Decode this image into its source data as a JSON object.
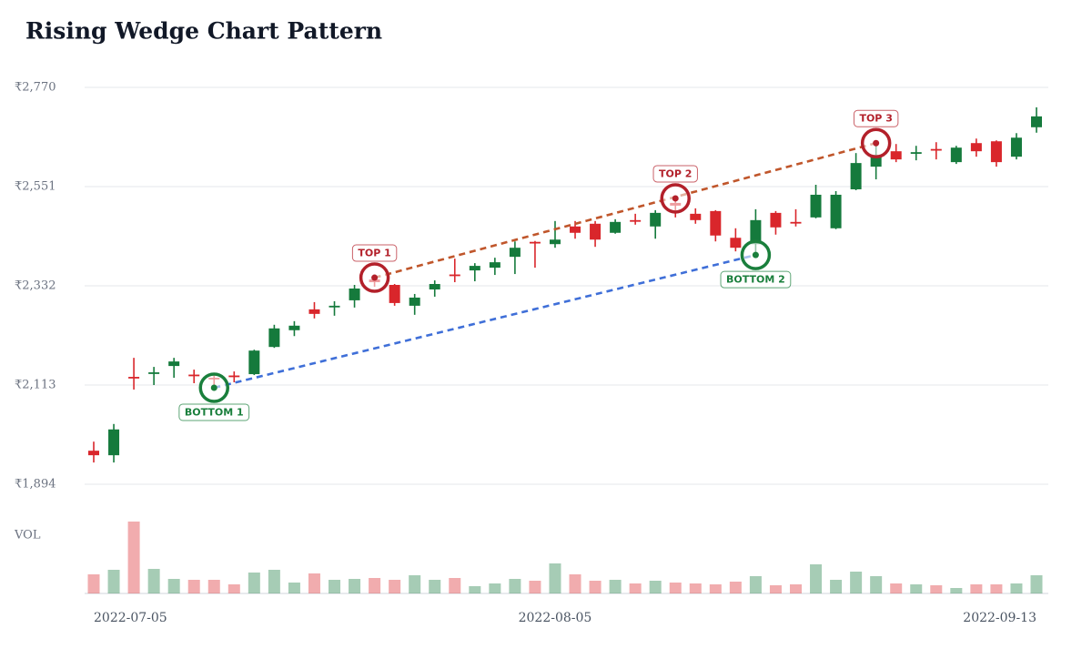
{
  "chart_data": {
    "type": "candlestick",
    "title": "Rising Wedge Chart Pattern",
    "categories": [
      "2022-07-05",
      null,
      null,
      null,
      null,
      null,
      null,
      null,
      null,
      null,
      null,
      null,
      null,
      null,
      null,
      null,
      null,
      null,
      null,
      null,
      null,
      null,
      null,
      "2022-08-05",
      null,
      null,
      null,
      null,
      null,
      null,
      null,
      null,
      null,
      null,
      null,
      null,
      null,
      null,
      null,
      null,
      null,
      null,
      null,
      null,
      null,
      null,
      null,
      "2022-09-13"
    ],
    "open": [
      1968,
      1958,
      2131,
      2139,
      2155,
      2136,
      2129,
      2134,
      2137,
      2197,
      2234,
      2280,
      2286,
      2300,
      2346,
      2334,
      2288,
      2324,
      2357,
      2366,
      2372,
      2396,
      2429,
      2424,
      2463,
      2469,
      2449,
      2477,
      2463,
      2515,
      2491,
      2497,
      2438,
      2424,
      2493,
      2473,
      2483,
      2459,
      2545,
      2595,
      2629,
      2625,
      2634,
      2605,
      2647,
      2651,
      2617,
      2682
    ],
    "high": [
      1988,
      2027,
      2173,
      2153,
      2173,
      2147,
      2137,
      2143,
      2191,
      2246,
      2254,
      2296,
      2298,
      2334,
      2350,
      2336,
      2314,
      2344,
      2392,
      2382,
      2394,
      2430,
      2431,
      2475,
      2475,
      2475,
      2479,
      2491,
      2499,
      2525,
      2503,
      2499,
      2459,
      2501,
      2497,
      2501,
      2555,
      2541,
      2625,
      2647,
      2645,
      2641,
      2649,
      2641,
      2657,
      2653,
      2669,
      2726
    ],
    "low": [
      1942,
      1942,
      2103,
      2113,
      2129,
      2117,
      2107,
      2119,
      2135,
      2195,
      2221,
      2260,
      2266,
      2284,
      2330,
      2288,
      2268,
      2308,
      2340,
      2342,
      2356,
      2358,
      2372,
      2416,
      2436,
      2418,
      2447,
      2467,
      2436,
      2483,
      2469,
      2430,
      2408,
      2400,
      2445,
      2463,
      2481,
      2457,
      2543,
      2567,
      2605,
      2609,
      2611,
      2601,
      2617,
      2595,
      2611,
      2670
    ],
    "close": [
      1958,
      2015,
      2130,
      2141,
      2165,
      2135,
      2127,
      2132,
      2189,
      2238,
      2244,
      2270,
      2288,
      2326,
      2340,
      2294,
      2306,
      2336,
      2355,
      2376,
      2384,
      2416,
      2427,
      2434,
      2449,
      2434,
      2473,
      2475,
      2493,
      2509,
      2477,
      2443,
      2416,
      2477,
      2461,
      2471,
      2533,
      2533,
      2603,
      2621,
      2611,
      2627,
      2632,
      2637,
      2629,
      2605,
      2659,
      2706
    ],
    "up_color": "#157a3c",
    "down_color": "#d9262b",
    "ylim": [
      1894,
      2770
    ],
    "yticks": [
      {
        "value": 1894,
        "label": "₹1,894"
      },
      {
        "value": 2113,
        "label": "₹2,113"
      },
      {
        "value": 2332,
        "label": "₹2,332"
      },
      {
        "value": 2551,
        "label": "₹2,551"
      },
      {
        "value": 2770,
        "label": "₹2,770"
      }
    ],
    "grid": true,
    "volume_label": "VOL",
    "volume": [
      21,
      26,
      79,
      27,
      16,
      15,
      15,
      10,
      23,
      26,
      12,
      22,
      15,
      16,
      17,
      15,
      20,
      15,
      17,
      8,
      11,
      16,
      14,
      33,
      21,
      14,
      15,
      11,
      14,
      12,
      11,
      10,
      13,
      19,
      9,
      10,
      32,
      15,
      24,
      19,
      11,
      10,
      9,
      6,
      10,
      10,
      11,
      20
    ],
    "volume_lim": [
      0,
      80
    ],
    "markers": [
      {
        "label": "TOP 1",
        "index": 14,
        "value": 2350,
        "kind": "top",
        "color": "#b3202a"
      },
      {
        "label": "TOP 2",
        "index": 29,
        "value": 2525,
        "kind": "top",
        "color": "#b3202a"
      },
      {
        "label": "TOP 3",
        "index": 39,
        "value": 2647,
        "kind": "top",
        "color": "#b3202a"
      },
      {
        "label": "BOTTOM 1",
        "index": 6,
        "value": 2107,
        "kind": "bottom",
        "color": "#1a7f3c"
      },
      {
        "label": "BOTTOM 2",
        "index": 33,
        "value": 2400,
        "kind": "bottom",
        "color": "#1a7f3c"
      }
    ],
    "trendlines": [
      {
        "from": 0,
        "to": 2,
        "color": "#c0562b"
      },
      {
        "from": 3,
        "to": 4,
        "color": "#3f6fd8"
      }
    ]
  }
}
